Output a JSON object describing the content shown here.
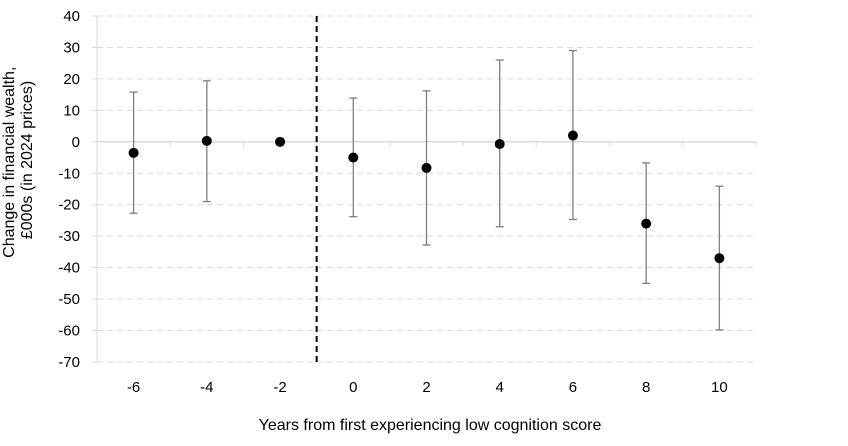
{
  "chart_data": {
    "type": "scatter",
    "title": "",
    "xlabel": "Years from first experiencing low cognition score",
    "ylabel_lines": [
      "Change in financial wealth,",
      "£000s (in 2024 prices)"
    ],
    "x_ticks": [
      "-6",
      "-4",
      "-2",
      "0",
      "2",
      "4",
      "6",
      "8",
      "10"
    ],
    "y_ticks": [
      "40",
      "30",
      "20",
      "10",
      "0",
      "-10",
      "-20",
      "-30",
      "-40",
      "-50",
      "-60",
      "-70"
    ],
    "ylim": [
      -70,
      40
    ],
    "grid": "horizontal-dashed",
    "reference_line_x": -1,
    "series": [
      {
        "x": [
          -6,
          -4,
          -2,
          0,
          2,
          4,
          6,
          8,
          10
        ],
        "y": [
          -3.5,
          0.3,
          0,
          -5,
          -8.3,
          -0.7,
          2,
          -26,
          -37
        ],
        "lower": [
          -22.7,
          -19,
          null,
          -23.8,
          -32.8,
          -27,
          -24.7,
          -45,
          -59.8
        ],
        "upper": [
          15.8,
          19.4,
          null,
          13.9,
          16.2,
          26,
          29,
          -6.7,
          -14.1
        ]
      }
    ],
    "colors": {
      "point": "#000000",
      "error_bar": "#7f7f7f",
      "grid": "#d9d9d9",
      "reference_line": "#000000"
    }
  }
}
